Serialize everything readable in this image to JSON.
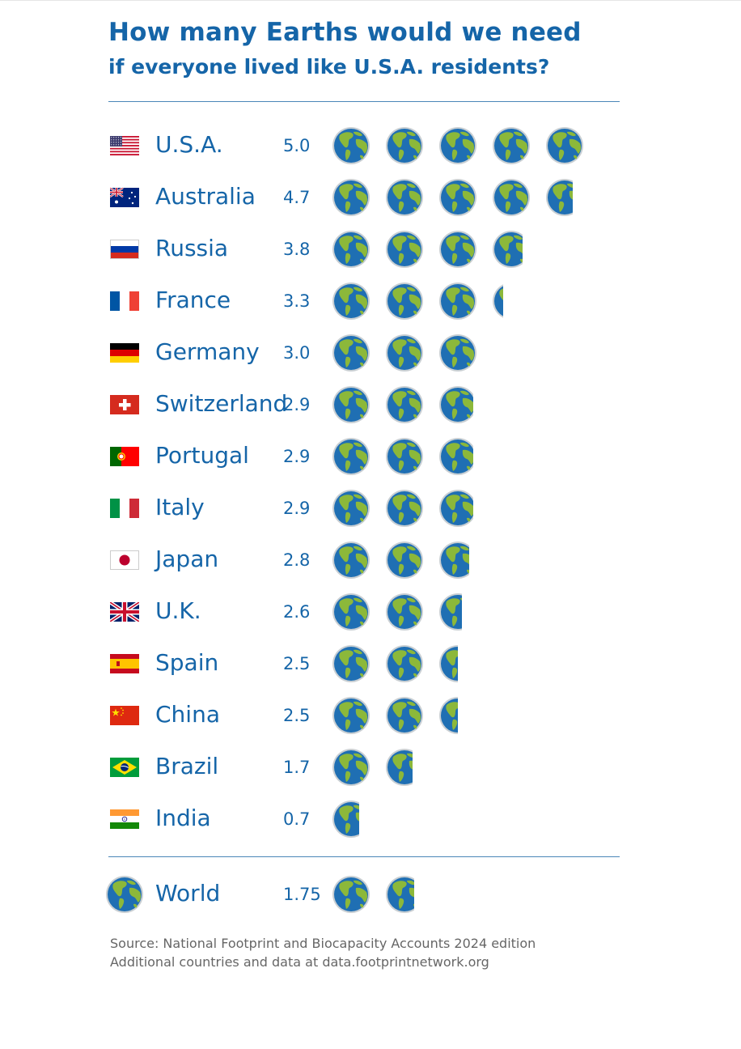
{
  "title": "How many Earths would we need",
  "subtitle": "if everyone lived like U.S.A. residents?",
  "chart_data": {
    "type": "bar",
    "categories": [
      "U.S.A.",
      "Australia",
      "Russia",
      "France",
      "Germany",
      "Switzerland",
      "Portugal",
      "Italy",
      "Japan",
      "U.K.",
      "Spain",
      "China",
      "Brazil",
      "India"
    ],
    "values": [
      5.0,
      4.7,
      3.8,
      3.3,
      3.0,
      2.9,
      2.9,
      2.9,
      2.8,
      2.6,
      2.5,
      2.5,
      1.7,
      0.7
    ],
    "value_labels": [
      "5.0",
      "4.7",
      "3.8",
      "3.3",
      "3.0",
      "2.9",
      "2.9",
      "2.9",
      "2.8",
      "2.6",
      "2.5",
      "2.5",
      "1.7",
      "0.7"
    ],
    "flags": [
      "us-flag-icon",
      "australia-flag-icon",
      "russia-flag-icon",
      "france-flag-icon",
      "germany-flag-icon",
      "switzerland-flag-icon",
      "portugal-flag-icon",
      "italy-flag-icon",
      "japan-flag-icon",
      "uk-flag-icon",
      "spain-flag-icon",
      "china-flag-icon",
      "brazil-flag-icon",
      "india-flag-icon"
    ],
    "unit_icon": "earth-globe-icon",
    "total": {
      "label": "World",
      "value": 1.75,
      "value_label": "1.75"
    },
    "colors": {
      "text": "#1565a8",
      "ocean": "#1f6fb3",
      "land": "#8cb83a",
      "rule": "#4a86b8",
      "source": "#666666"
    }
  },
  "source": {
    "line1": "Source: National Footprint and Biocapacity Accounts 2024 edition",
    "line2": "Additional countries and data at data.footprintnetwork.org"
  }
}
